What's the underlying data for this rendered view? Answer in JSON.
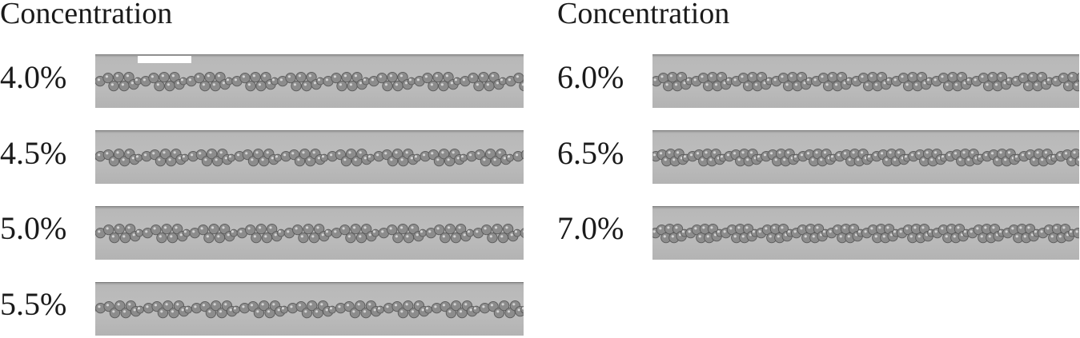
{
  "columns": [
    {
      "heading": "Concentration",
      "panels": [
        {
          "label": "4.0%"
        },
        {
          "label": "4.5%"
        },
        {
          "label": "5.0%"
        },
        {
          "label": "5.5%"
        }
      ]
    },
    {
      "heading": "Concentration",
      "panels": [
        {
          "label": "6.0%"
        },
        {
          "label": "6.5%"
        },
        {
          "label": "7.0%"
        }
      ]
    }
  ],
  "colors": {
    "droplet_fill": "#8c8c8c",
    "droplet_edge": "#5a5a5a",
    "droplet_highlight": "#d4d4d4",
    "channel_background": "#bdbdbd",
    "scale_bar": "#ffffff"
  }
}
